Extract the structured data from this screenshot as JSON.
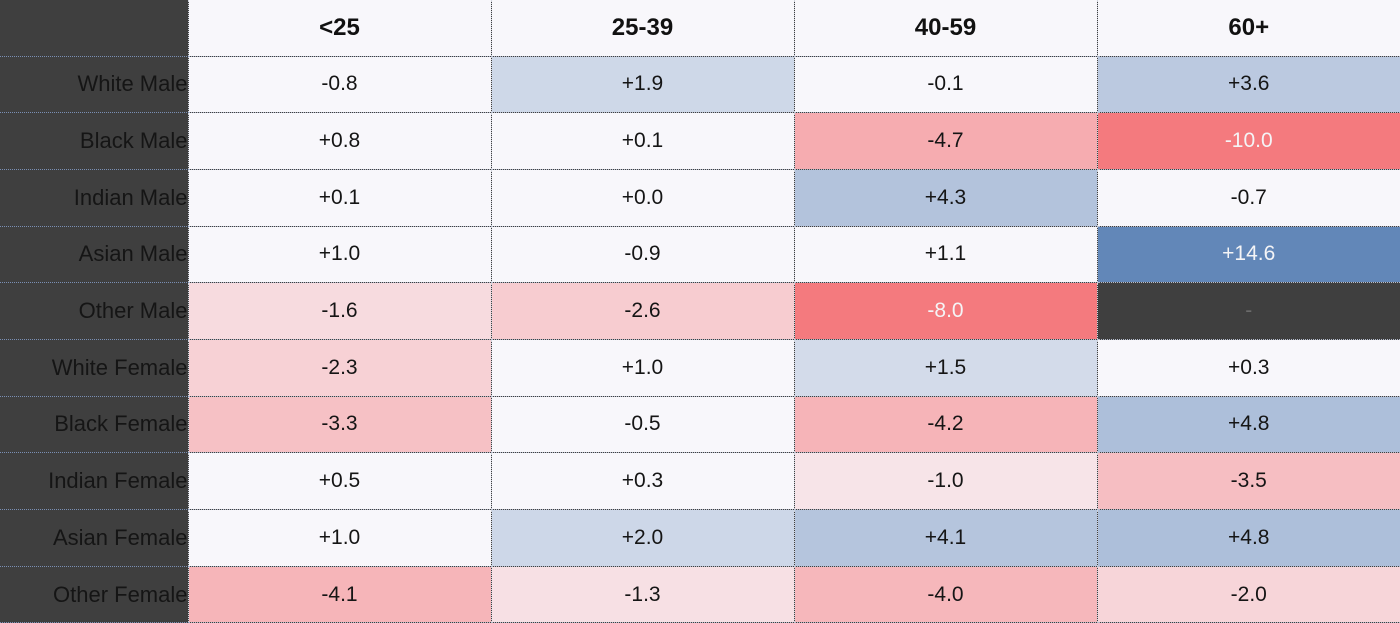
{
  "chart_data": {
    "type": "heatmap",
    "title": "",
    "columns": [
      "<25",
      "25-39",
      "40-59",
      "60+"
    ],
    "rows": [
      "White Male",
      "Black Male",
      "Indian Male",
      "Asian Male",
      "Other Male",
      "White Female",
      "Black Female",
      "Indian Female",
      "Asian Female",
      "Other Female"
    ],
    "values": [
      [
        "-0.8",
        "+1.9",
        "-0.1",
        "+3.6"
      ],
      [
        "+0.8",
        "+0.1",
        "-4.7",
        "-10.0"
      ],
      [
        "+0.1",
        "+0.0",
        "+4.3",
        "-0.7"
      ],
      [
        "+1.0",
        "-0.9",
        "+1.1",
        "+14.6"
      ],
      [
        "-1.6",
        "-2.6",
        "-8.0",
        "-"
      ],
      [
        "-2.3",
        "+1.0",
        "+1.5",
        "+0.3"
      ],
      [
        "-3.3",
        "-0.5",
        "-4.2",
        "+4.8"
      ],
      [
        "+0.5",
        "+0.3",
        "-1.0",
        "-3.5"
      ],
      [
        "+1.0",
        "+2.0",
        "+4.1",
        "+4.8"
      ],
      [
        "-4.1",
        "-1.3",
        "-4.0",
        "-2.0"
      ]
    ],
    "missing_value_label": "-",
    "colors": {
      "neutral": "#f8f7fb",
      "positive": "#6287b8",
      "negative": "#f47a7e",
      "missing": "#3f3f3f"
    }
  }
}
